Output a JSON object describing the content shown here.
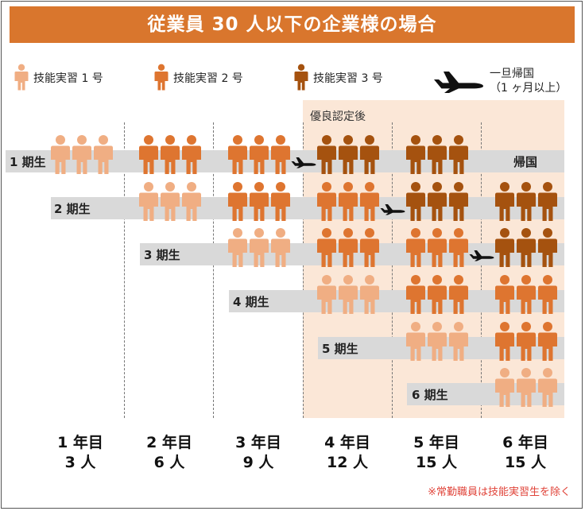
{
  "title": "従業員 30 人以下の企業様の場合",
  "legend": {
    "type1": "技能実習 1 号",
    "type2": "技能実習 2 号",
    "type3": "技能実習 3 号",
    "return_line1": "一旦帰国",
    "return_line2": "（1 ヶ月以上）"
  },
  "colors": {
    "type1": "#f0ae83",
    "type2": "#de7530",
    "type3": "#a5520f",
    "title_bg": "#d9762d",
    "highlight_bg": "#fbe7d7",
    "band": "#d9d9d9",
    "note": "#e0443a"
  },
  "post_certification_label": "優良認定後",
  "return_home_label": "帰国",
  "cohorts": [
    {
      "label": "1 期生",
      "groups": [
        "type1",
        "type2",
        "type2",
        "type3",
        "type3"
      ],
      "return_after_year": 3,
      "ends_with_return": true
    },
    {
      "label": "2 期生",
      "groups": [
        "type1",
        "type2",
        "type2",
        "type3",
        "type3"
      ],
      "return_after_year": 4
    },
    {
      "label": "3 期生",
      "groups": [
        "type1",
        "type2",
        "type2",
        "type3"
      ],
      "return_after_year": 5
    },
    {
      "label": "4 期生",
      "groups": [
        "type1",
        "type2",
        "type2"
      ]
    },
    {
      "label": "5 期生",
      "groups": [
        "type1",
        "type2"
      ]
    },
    {
      "label": "6 期生",
      "groups": [
        "type1"
      ]
    }
  ],
  "years": [
    {
      "year": "1 年目",
      "count": "3 人"
    },
    {
      "year": "2 年目",
      "count": "6 人"
    },
    {
      "year": "3 年目",
      "count": "9 人"
    },
    {
      "year": "4 年目",
      "count": "12 人"
    },
    {
      "year": "5 年目",
      "count": "15 人"
    },
    {
      "year": "6 年目",
      "count": "15 人"
    }
  ],
  "note": "※常勤職員は技能実習生を除く"
}
